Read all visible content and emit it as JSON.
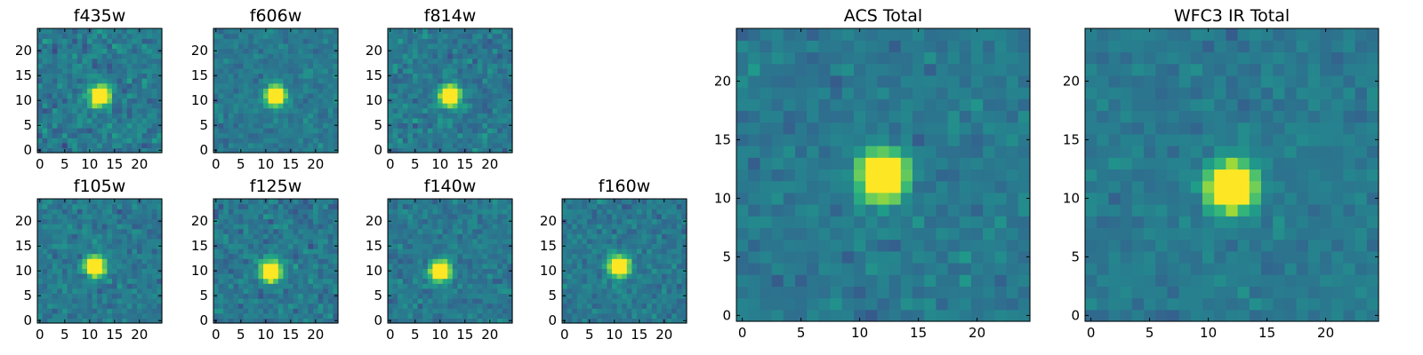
{
  "chart_data": [
    {
      "type": "heatmap",
      "title": "f435w",
      "grid": false,
      "colormap": "viridis",
      "size": 25,
      "xlim": [
        0,
        24
      ],
      "ylim": [
        0,
        24
      ],
      "xticks": [
        "0",
        "5",
        "10",
        "15",
        "20"
      ],
      "yticks": [
        "0",
        "5",
        "10",
        "15",
        "20"
      ],
      "peak": {
        "x": 12,
        "y": 11
      },
      "noise_level": 0.9,
      "seed": 11
    },
    {
      "type": "heatmap",
      "title": "f606w",
      "grid": false,
      "colormap": "viridis",
      "size": 25,
      "xlim": [
        0,
        24
      ],
      "ylim": [
        0,
        24
      ],
      "xticks": [
        "0",
        "5",
        "10",
        "15",
        "20"
      ],
      "yticks": [
        "0",
        "5",
        "10",
        "15",
        "20"
      ],
      "peak": {
        "x": 12,
        "y": 11
      },
      "noise_level": 0.6,
      "seed": 23
    },
    {
      "type": "heatmap",
      "title": "f814w",
      "grid": false,
      "colormap": "viridis",
      "size": 25,
      "xlim": [
        0,
        24
      ],
      "ylim": [
        0,
        24
      ],
      "xticks": [
        "0",
        "5",
        "10",
        "15",
        "20"
      ],
      "yticks": [
        "0",
        "5",
        "10",
        "15",
        "20"
      ],
      "peak": {
        "x": 12,
        "y": 11
      },
      "noise_level": 0.8,
      "seed": 37
    },
    {
      "type": "heatmap",
      "title": "f105w",
      "grid": false,
      "colormap": "viridis",
      "size": 25,
      "xlim": [
        0,
        24
      ],
      "ylim": [
        0,
        24
      ],
      "xticks": [
        "0",
        "5",
        "10",
        "15",
        "20"
      ],
      "yticks": [
        "0",
        "5",
        "10",
        "15",
        "20"
      ],
      "peak": {
        "x": 11,
        "y": 11
      },
      "noise_level": 0.7,
      "seed": 41
    },
    {
      "type": "heatmap",
      "title": "f125w",
      "grid": false,
      "colormap": "viridis",
      "size": 25,
      "xlim": [
        0,
        24
      ],
      "ylim": [
        0,
        24
      ],
      "xticks": [
        "0",
        "5",
        "10",
        "15",
        "20"
      ],
      "yticks": [
        "0",
        "5",
        "10",
        "15",
        "20"
      ],
      "peak": {
        "x": 11,
        "y": 10
      },
      "noise_level": 0.8,
      "seed": 53
    },
    {
      "type": "heatmap",
      "title": "f140w",
      "grid": false,
      "colormap": "viridis",
      "size": 25,
      "xlim": [
        0,
        24
      ],
      "ylim": [
        0,
        24
      ],
      "xticks": [
        "0",
        "5",
        "10",
        "15",
        "20"
      ],
      "yticks": [
        "0",
        "5",
        "10",
        "15",
        "20"
      ],
      "peak": {
        "x": 10,
        "y": 10
      },
      "noise_level": 0.7,
      "seed": 67
    },
    {
      "type": "heatmap",
      "title": "f160w",
      "grid": false,
      "colormap": "viridis",
      "size": 25,
      "xlim": [
        0,
        24
      ],
      "ylim": [
        0,
        24
      ],
      "xticks": [
        "0",
        "5",
        "10",
        "15",
        "20"
      ],
      "yticks": [
        "0",
        "5",
        "10",
        "15",
        "20"
      ],
      "peak": {
        "x": 11,
        "y": 11
      },
      "noise_level": 0.7,
      "seed": 79
    },
    {
      "type": "heatmap",
      "title": "ACS Total",
      "grid": false,
      "colormap": "viridis",
      "size": 25,
      "xlim": [
        0,
        24
      ],
      "ylim": [
        0,
        24
      ],
      "xticks": [
        "0",
        "5",
        "10",
        "15",
        "20"
      ],
      "yticks": [
        "0",
        "5",
        "10",
        "15",
        "20"
      ],
      "peak": {
        "x": 12,
        "y": 12
      },
      "noise_level": 0.6,
      "seed": 83
    },
    {
      "type": "heatmap",
      "title": "WFC3 IR Total",
      "grid": false,
      "colormap": "viridis",
      "size": 25,
      "xlim": [
        0,
        24
      ],
      "ylim": [
        0,
        24
      ],
      "xticks": [
        "0",
        "5",
        "10",
        "15",
        "20"
      ],
      "yticks": [
        "0",
        "5",
        "10",
        "15",
        "20"
      ],
      "peak": {
        "x": 12,
        "y": 11
      },
      "noise_level": 0.5,
      "seed": 97
    }
  ]
}
